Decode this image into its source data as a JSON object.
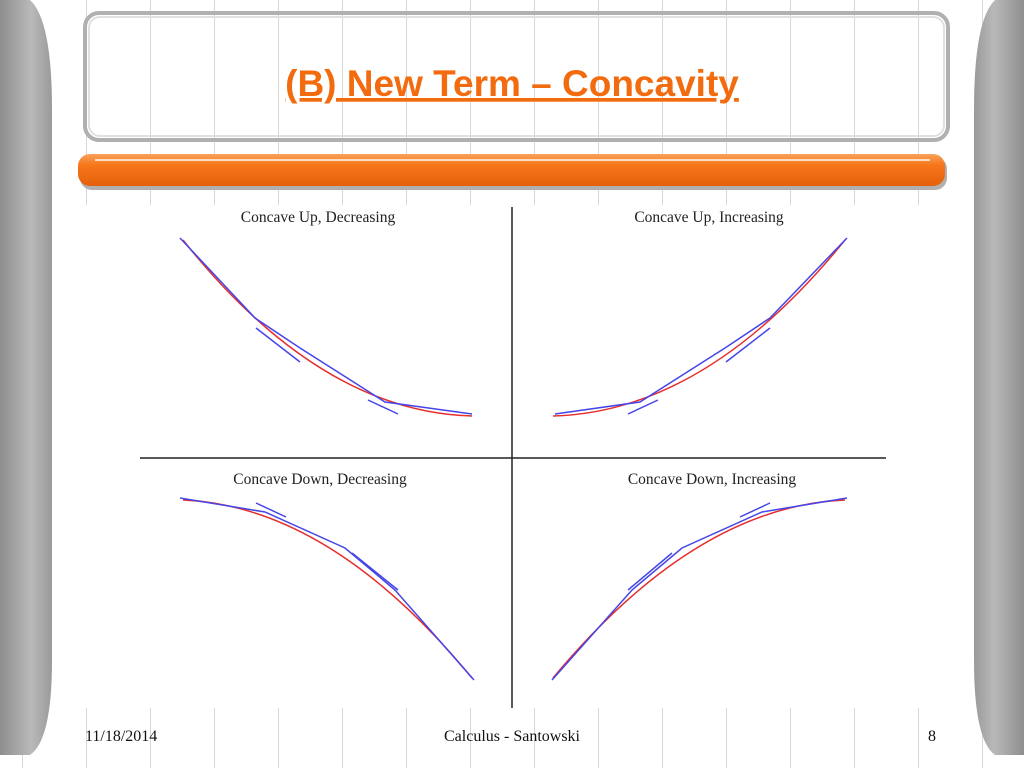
{
  "header": {
    "title": "(B) New Term – Concavity"
  },
  "panels": [
    {
      "label": "Concave Up, Decreasing"
    },
    {
      "label": "Concave Up, Increasing"
    },
    {
      "label": "Concave Down, Decreasing"
    },
    {
      "label": "Concave Down, Increasing"
    }
  ],
  "footer": {
    "date": "11/18/2014",
    "center": "Calculus - Santowski",
    "page": "8"
  }
}
